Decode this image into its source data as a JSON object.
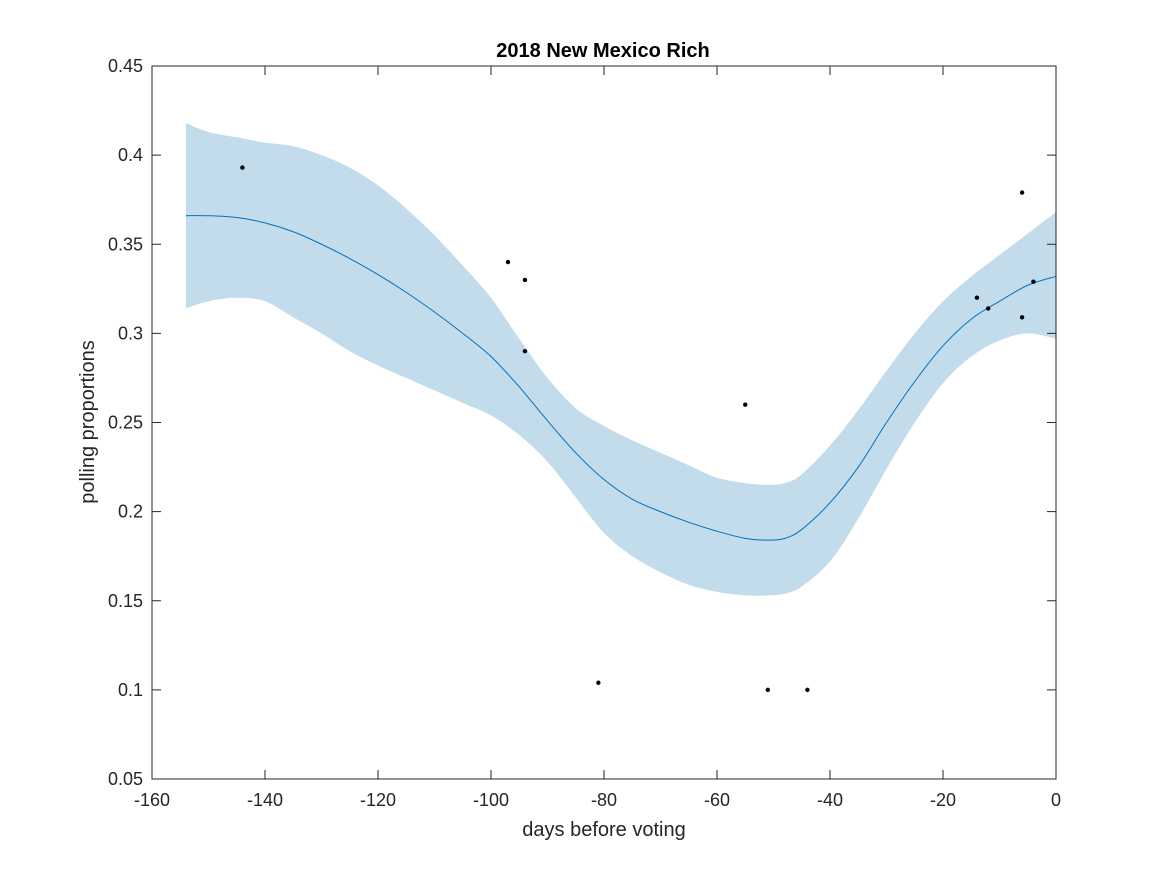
{
  "chart_data": {
    "type": "line",
    "title": "2018 New Mexico Rich",
    "xlabel": "days before voting",
    "ylabel": "polling proportions",
    "xlim": [
      -160,
      0
    ],
    "ylim": [
      0.05,
      0.45
    ],
    "xticks": [
      -160,
      -140,
      -120,
      -100,
      -80,
      -60,
      -40,
      -20,
      0
    ],
    "xtick_labels": [
      "-160",
      "-140",
      "-120",
      "-100",
      "-80",
      "-60",
      "-40",
      "-20",
      "0"
    ],
    "yticks": [
      0.05,
      0.1,
      0.15,
      0.2,
      0.25,
      0.3,
      0.35,
      0.4,
      0.45
    ],
    "ytick_labels": [
      "0.05",
      "0.1",
      "0.15",
      "0.2",
      "0.25",
      "0.3",
      "0.35",
      "0.4",
      "0.45"
    ],
    "grid": false,
    "colors": {
      "band": "#c2dceb",
      "line": "#0072bd",
      "points": "#000000"
    },
    "series": [
      {
        "x": [
          -154,
          -150,
          -145,
          -140,
          -135,
          -130,
          -125,
          -120,
          -115,
          -110,
          -105,
          -100,
          -95,
          -90,
          -85,
          -80,
          -75,
          -70,
          -65,
          -60,
          -55,
          -51,
          -48,
          -45,
          -40,
          -35,
          -30,
          -25,
          -20,
          -15,
          -10,
          -5,
          0
        ],
        "values": [
          0.366,
          0.366,
          0.365,
          0.362,
          0.357,
          0.35,
          0.342,
          0.333,
          0.323,
          0.312,
          0.3,
          0.287,
          0.27,
          0.251,
          0.233,
          0.218,
          0.207,
          0.2,
          0.194,
          0.189,
          0.185,
          0.184,
          0.185,
          0.19,
          0.205,
          0.225,
          0.25,
          0.273,
          0.293,
          0.308,
          0.318,
          0.327,
          0.332
        ],
        "lower": [
          0.314,
          0.318,
          0.32,
          0.318,
          0.309,
          0.3,
          0.29,
          0.282,
          0.275,
          0.268,
          0.261,
          0.254,
          0.243,
          0.228,
          0.208,
          0.188,
          0.175,
          0.166,
          0.159,
          0.155,
          0.153,
          0.153,
          0.154,
          0.158,
          0.172,
          0.196,
          0.224,
          0.25,
          0.272,
          0.287,
          0.296,
          0.3,
          0.297
        ],
        "upper": [
          0.418,
          0.413,
          0.41,
          0.407,
          0.405,
          0.4,
          0.393,
          0.383,
          0.37,
          0.355,
          0.338,
          0.32,
          0.297,
          0.275,
          0.258,
          0.248,
          0.24,
          0.233,
          0.226,
          0.219,
          0.216,
          0.215,
          0.216,
          0.221,
          0.237,
          0.257,
          0.279,
          0.3,
          0.318,
          0.332,
          0.344,
          0.356,
          0.368
        ]
      }
    ],
    "points": [
      {
        "x": -144,
        "y": 0.393
      },
      {
        "x": -97,
        "y": 0.34
      },
      {
        "x": -94,
        "y": 0.33
      },
      {
        "x": -94,
        "y": 0.29
      },
      {
        "x": -81,
        "y": 0.104
      },
      {
        "x": -55,
        "y": 0.26
      },
      {
        "x": -51,
        "y": 0.1
      },
      {
        "x": -44,
        "y": 0.1
      },
      {
        "x": -14,
        "y": 0.32
      },
      {
        "x": -12,
        "y": 0.314
      },
      {
        "x": -6,
        "y": 0.379
      },
      {
        "x": -6,
        "y": 0.309
      },
      {
        "x": -4,
        "y": 0.329
      }
    ]
  }
}
